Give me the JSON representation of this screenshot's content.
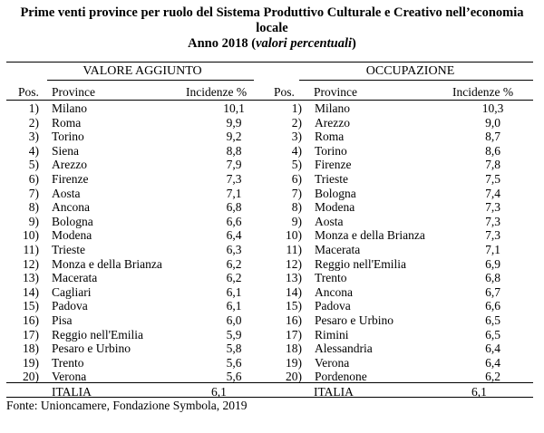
{
  "title": {
    "line1": "Prime venti province per ruolo del Sistema Produttivo Culturale e Creativo nell’economia",
    "line2": "locale",
    "line3_main": "Anno 2018 (",
    "line3_italic": "valori percentuali",
    "line3_end": ")"
  },
  "left": {
    "section": "VALORE AGGIUNTO",
    "headers": {
      "pos": "Pos.",
      "province": "Province",
      "value": "Incidenze %"
    },
    "rows": [
      {
        "pos": "1)",
        "province": "Milano",
        "value": "10,1"
      },
      {
        "pos": "2)",
        "province": "Roma",
        "value": "9,9"
      },
      {
        "pos": "3)",
        "province": "Torino",
        "value": "9,2"
      },
      {
        "pos": "4)",
        "province": "Siena",
        "value": "8,8"
      },
      {
        "pos": "5)",
        "province": "Arezzo",
        "value": "7,9"
      },
      {
        "pos": "6)",
        "province": "Firenze",
        "value": "7,3"
      },
      {
        "pos": "7)",
        "province": "Aosta",
        "value": "7,1"
      },
      {
        "pos": "8)",
        "province": "Ancona",
        "value": "6,8"
      },
      {
        "pos": "9)",
        "province": "Bologna",
        "value": "6,6"
      },
      {
        "pos": "10)",
        "province": "Modena",
        "value": "6,4"
      },
      {
        "pos": "11)",
        "province": "Trieste",
        "value": "6,3"
      },
      {
        "pos": "12)",
        "province": "Monza e della Brianza",
        "value": "6,2"
      },
      {
        "pos": "13)",
        "province": "Macerata",
        "value": "6,2"
      },
      {
        "pos": "14)",
        "province": "Cagliari",
        "value": "6,1"
      },
      {
        "pos": "15)",
        "province": "Padova",
        "value": "6,1"
      },
      {
        "pos": "16)",
        "province": "Pisa",
        "value": "6,0"
      },
      {
        "pos": "17)",
        "province": "Reggio nell'Emilia",
        "value": "5,9"
      },
      {
        "pos": "18)",
        "province": "Pesaro e Urbino",
        "value": "5,8"
      },
      {
        "pos": "19)",
        "province": "Trento",
        "value": "5,6"
      },
      {
        "pos": "20)",
        "province": "Verona",
        "value": "5,6"
      }
    ],
    "total_label": "ITALIA",
    "total_value": "6,1"
  },
  "right": {
    "section": "OCCUPAZIONE",
    "headers": {
      "pos": "Pos.",
      "province": "Province",
      "value": "Incidenze %"
    },
    "rows": [
      {
        "pos": "1)",
        "province": "Milano",
        "value": "10,3"
      },
      {
        "pos": "2)",
        "province": "Arezzo",
        "value": "9,0"
      },
      {
        "pos": "3)",
        "province": "Roma",
        "value": "8,7"
      },
      {
        "pos": "4)",
        "province": "Torino",
        "value": "8,6"
      },
      {
        "pos": "5)",
        "province": "Firenze",
        "value": "7,8"
      },
      {
        "pos": "6)",
        "province": "Trieste",
        "value": "7,5"
      },
      {
        "pos": "7)",
        "province": "Bologna",
        "value": "7,4"
      },
      {
        "pos": "8)",
        "province": "Modena",
        "value": "7,3"
      },
      {
        "pos": "9)",
        "province": "Aosta",
        "value": "7,3"
      },
      {
        "pos": "10)",
        "province": "Monza e della Brianza",
        "value": "7,3"
      },
      {
        "pos": "11)",
        "province": "Macerata",
        "value": "7,1"
      },
      {
        "pos": "12)",
        "province": "Reggio nell'Emilia",
        "value": "6,9"
      },
      {
        "pos": "13)",
        "province": "Trento",
        "value": "6,8"
      },
      {
        "pos": "14)",
        "province": "Ancona",
        "value": "6,7"
      },
      {
        "pos": "15)",
        "province": "Padova",
        "value": "6,6"
      },
      {
        "pos": "16)",
        "province": "Pesaro e Urbino",
        "value": "6,5"
      },
      {
        "pos": "17)",
        "province": "Rimini",
        "value": "6,5"
      },
      {
        "pos": "18)",
        "province": "Alessandria",
        "value": "6,4"
      },
      {
        "pos": "19)",
        "province": "Verona",
        "value": "6,4"
      },
      {
        "pos": "20)",
        "province": "Pordenone",
        "value": "6,2"
      }
    ],
    "total_label": "ITALIA",
    "total_value": "6,1"
  },
  "source": "Fonte: Unioncamere, Fondazione Symbola, 2019"
}
